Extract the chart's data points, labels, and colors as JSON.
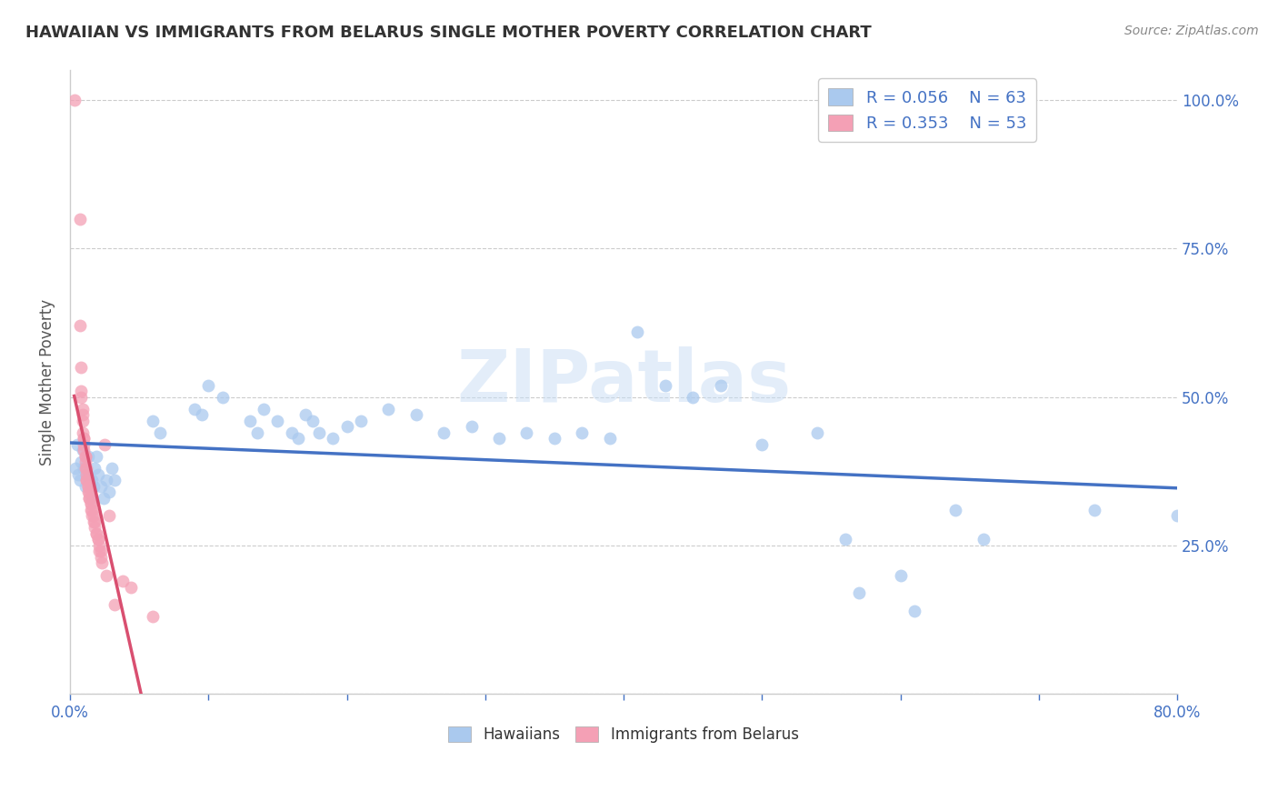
{
  "title": "HAWAIIAN VS IMMIGRANTS FROM BELARUS SINGLE MOTHER POVERTY CORRELATION CHART",
  "source": "Source: ZipAtlas.com",
  "ylabel": "Single Mother Poverty",
  "x_min": 0.0,
  "x_max": 0.8,
  "y_min": 0.0,
  "y_max": 1.05,
  "x_tick_positions": [
    0.0,
    0.1,
    0.2,
    0.3,
    0.4,
    0.5,
    0.6,
    0.7,
    0.8
  ],
  "x_tick_labels": [
    "0.0%",
    "",
    "",
    "",
    "",
    "",
    "",
    "",
    "80.0%"
  ],
  "y_tick_positions": [
    0.0,
    0.25,
    0.5,
    0.75,
    1.0
  ],
  "y_tick_labels_right": [
    "",
    "25.0%",
    "50.0%",
    "75.0%",
    "100.0%"
  ],
  "legend_labels": [
    "Hawaiians",
    "Immigrants from Belarus"
  ],
  "legend_R": [
    0.056,
    0.353
  ],
  "legend_N": [
    63,
    53
  ],
  "hawaiian_color": "#aac9ee",
  "belarus_color": "#f4a0b5",
  "hawaiian_line_color": "#4472c4",
  "belarus_line_color": "#d94f70",
  "hawaiian_scatter": [
    [
      0.004,
      0.38
    ],
    [
      0.005,
      0.42
    ],
    [
      0.006,
      0.37
    ],
    [
      0.007,
      0.36
    ],
    [
      0.008,
      0.39
    ],
    [
      0.009,
      0.41
    ],
    [
      0.01,
      0.38
    ],
    [
      0.011,
      0.35
    ],
    [
      0.012,
      0.37
    ],
    [
      0.013,
      0.4
    ],
    [
      0.014,
      0.36
    ],
    [
      0.015,
      0.33
    ],
    [
      0.016,
      0.36
    ],
    [
      0.017,
      0.35
    ],
    [
      0.018,
      0.38
    ],
    [
      0.019,
      0.4
    ],
    [
      0.02,
      0.37
    ],
    [
      0.022,
      0.35
    ],
    [
      0.024,
      0.33
    ],
    [
      0.026,
      0.36
    ],
    [
      0.028,
      0.34
    ],
    [
      0.03,
      0.38
    ],
    [
      0.032,
      0.36
    ],
    [
      0.06,
      0.46
    ],
    [
      0.065,
      0.44
    ],
    [
      0.09,
      0.48
    ],
    [
      0.095,
      0.47
    ],
    [
      0.1,
      0.52
    ],
    [
      0.11,
      0.5
    ],
    [
      0.13,
      0.46
    ],
    [
      0.135,
      0.44
    ],
    [
      0.14,
      0.48
    ],
    [
      0.15,
      0.46
    ],
    [
      0.16,
      0.44
    ],
    [
      0.165,
      0.43
    ],
    [
      0.17,
      0.47
    ],
    [
      0.175,
      0.46
    ],
    [
      0.18,
      0.44
    ],
    [
      0.19,
      0.43
    ],
    [
      0.2,
      0.45
    ],
    [
      0.21,
      0.46
    ],
    [
      0.23,
      0.48
    ],
    [
      0.25,
      0.47
    ],
    [
      0.27,
      0.44
    ],
    [
      0.29,
      0.45
    ],
    [
      0.31,
      0.43
    ],
    [
      0.33,
      0.44
    ],
    [
      0.35,
      0.43
    ],
    [
      0.37,
      0.44
    ],
    [
      0.39,
      0.43
    ],
    [
      0.41,
      0.61
    ],
    [
      0.43,
      0.52
    ],
    [
      0.45,
      0.5
    ],
    [
      0.47,
      0.52
    ],
    [
      0.5,
      0.42
    ],
    [
      0.54,
      0.44
    ],
    [
      0.56,
      0.26
    ],
    [
      0.57,
      0.17
    ],
    [
      0.6,
      0.2
    ],
    [
      0.61,
      0.14
    ],
    [
      0.64,
      0.31
    ],
    [
      0.66,
      0.26
    ],
    [
      0.74,
      0.31
    ],
    [
      0.8,
      0.3
    ]
  ],
  "belarus_scatter": [
    [
      0.003,
      1.0
    ],
    [
      0.007,
      0.8
    ],
    [
      0.007,
      0.62
    ],
    [
      0.008,
      0.55
    ],
    [
      0.008,
      0.51
    ],
    [
      0.008,
      0.5
    ],
    [
      0.009,
      0.48
    ],
    [
      0.009,
      0.47
    ],
    [
      0.009,
      0.46
    ],
    [
      0.009,
      0.44
    ],
    [
      0.01,
      0.43
    ],
    [
      0.01,
      0.43
    ],
    [
      0.01,
      0.42
    ],
    [
      0.01,
      0.41
    ],
    [
      0.011,
      0.4
    ],
    [
      0.011,
      0.4
    ],
    [
      0.011,
      0.39
    ],
    [
      0.011,
      0.38
    ],
    [
      0.012,
      0.38
    ],
    [
      0.012,
      0.37
    ],
    [
      0.012,
      0.36
    ],
    [
      0.012,
      0.36
    ],
    [
      0.013,
      0.35
    ],
    [
      0.013,
      0.35
    ],
    [
      0.013,
      0.34
    ],
    [
      0.014,
      0.34
    ],
    [
      0.014,
      0.33
    ],
    [
      0.014,
      0.33
    ],
    [
      0.015,
      0.32
    ],
    [
      0.015,
      0.32
    ],
    [
      0.015,
      0.31
    ],
    [
      0.016,
      0.31
    ],
    [
      0.016,
      0.3
    ],
    [
      0.017,
      0.3
    ],
    [
      0.017,
      0.29
    ],
    [
      0.018,
      0.29
    ],
    [
      0.018,
      0.28
    ],
    [
      0.019,
      0.27
    ],
    [
      0.019,
      0.27
    ],
    [
      0.02,
      0.26
    ],
    [
      0.02,
      0.26
    ],
    [
      0.021,
      0.25
    ],
    [
      0.021,
      0.24
    ],
    [
      0.022,
      0.24
    ],
    [
      0.022,
      0.23
    ],
    [
      0.023,
      0.22
    ],
    [
      0.025,
      0.42
    ],
    [
      0.026,
      0.2
    ],
    [
      0.028,
      0.3
    ],
    [
      0.032,
      0.15
    ],
    [
      0.038,
      0.19
    ],
    [
      0.044,
      0.18
    ],
    [
      0.06,
      0.13
    ]
  ],
  "watermark_text": "ZIPatlas",
  "background_color": "#ffffff",
  "grid_color": "#cccccc"
}
